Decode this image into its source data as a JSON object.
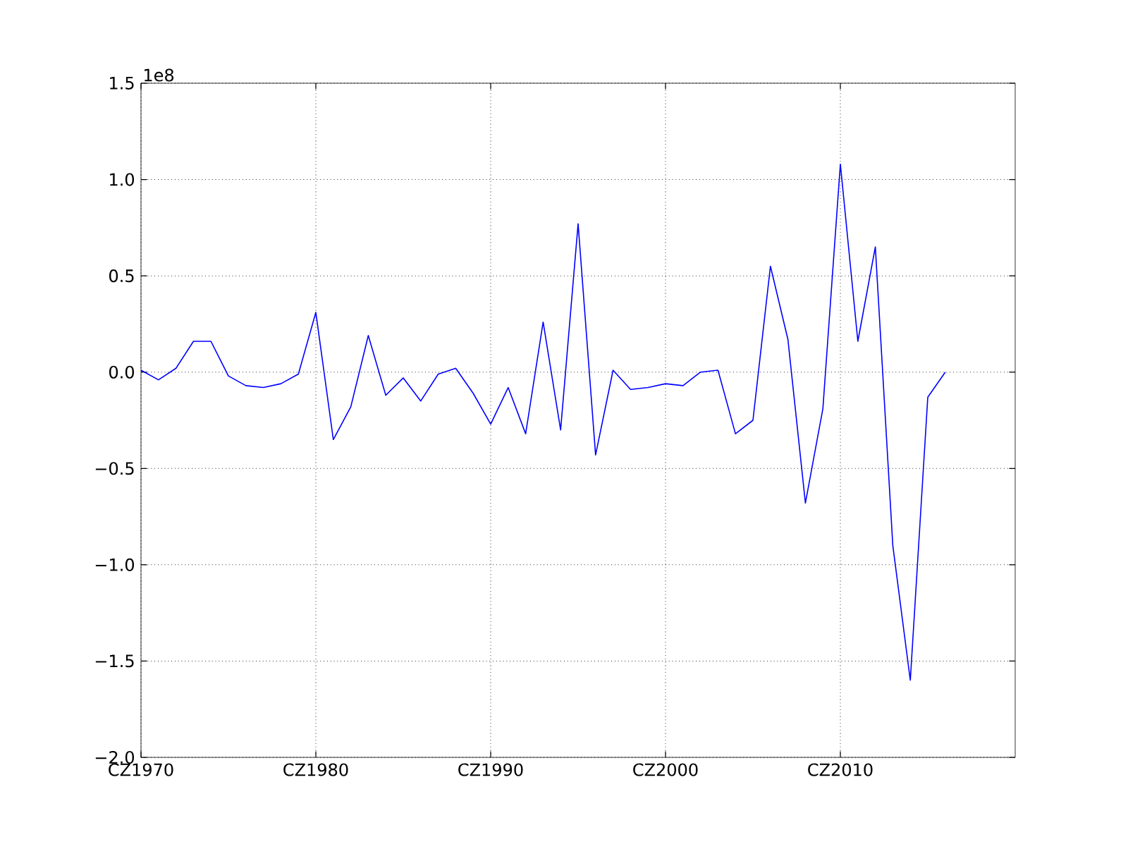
{
  "chart_data": {
    "type": "line",
    "categories": [
      "CZ1970",
      null,
      null,
      null,
      null,
      null,
      null,
      null,
      null,
      null,
      "CZ1980",
      null,
      null,
      null,
      null,
      null,
      null,
      null,
      null,
      null,
      "CZ1990",
      null,
      null,
      null,
      null,
      null,
      null,
      null,
      null,
      null,
      "CZ2000",
      null,
      null,
      null,
      null,
      null,
      null,
      null,
      null,
      null,
      "CZ2010",
      null,
      null,
      null,
      null,
      null,
      null,
      null,
      null,
      null
    ],
    "series": [
      {
        "color": "#0000ff",
        "values": [
          0.01,
          -0.04,
          0.02,
          0.16,
          0.16,
          -0.02,
          -0.07,
          -0.08,
          -0.06,
          -0.01,
          0.31,
          -0.35,
          -0.18,
          0.19,
          -0.12,
          -0.03,
          -0.15,
          -0.01,
          0.02,
          -0.11,
          -0.27,
          -0.08,
          -0.32,
          0.26,
          -0.3,
          0.77,
          -0.43,
          0.01,
          -0.09,
          -0.08,
          -0.06,
          -0.07,
          0.0,
          0.01,
          -0.32,
          -0.25,
          0.55,
          0.17,
          -0.68,
          -0.19,
          1.08,
          0.16,
          0.65,
          -0.9,
          -1.6,
          -0.13,
          0.0,
          null,
          null,
          null
        ]
      }
    ],
    "ylim": [
      -2.0,
      1.5
    ],
    "yticks": [
      {
        "value": -2.0,
        "label": "−2.0"
      },
      {
        "value": -1.5,
        "label": "−1.5"
      },
      {
        "value": -1.0,
        "label": "−1.0"
      },
      {
        "value": -0.5,
        "label": "−0.5"
      },
      {
        "value": 0.0,
        "label": "0.0"
      },
      {
        "value": 0.5,
        "label": "0.5"
      },
      {
        "value": 1.0,
        "label": "1.0"
      },
      {
        "value": 1.5,
        "label": "1.5"
      }
    ],
    "annotations": [
      "1e8"
    ],
    "grid": true,
    "marker": "none",
    "line_style": "solid"
  }
}
